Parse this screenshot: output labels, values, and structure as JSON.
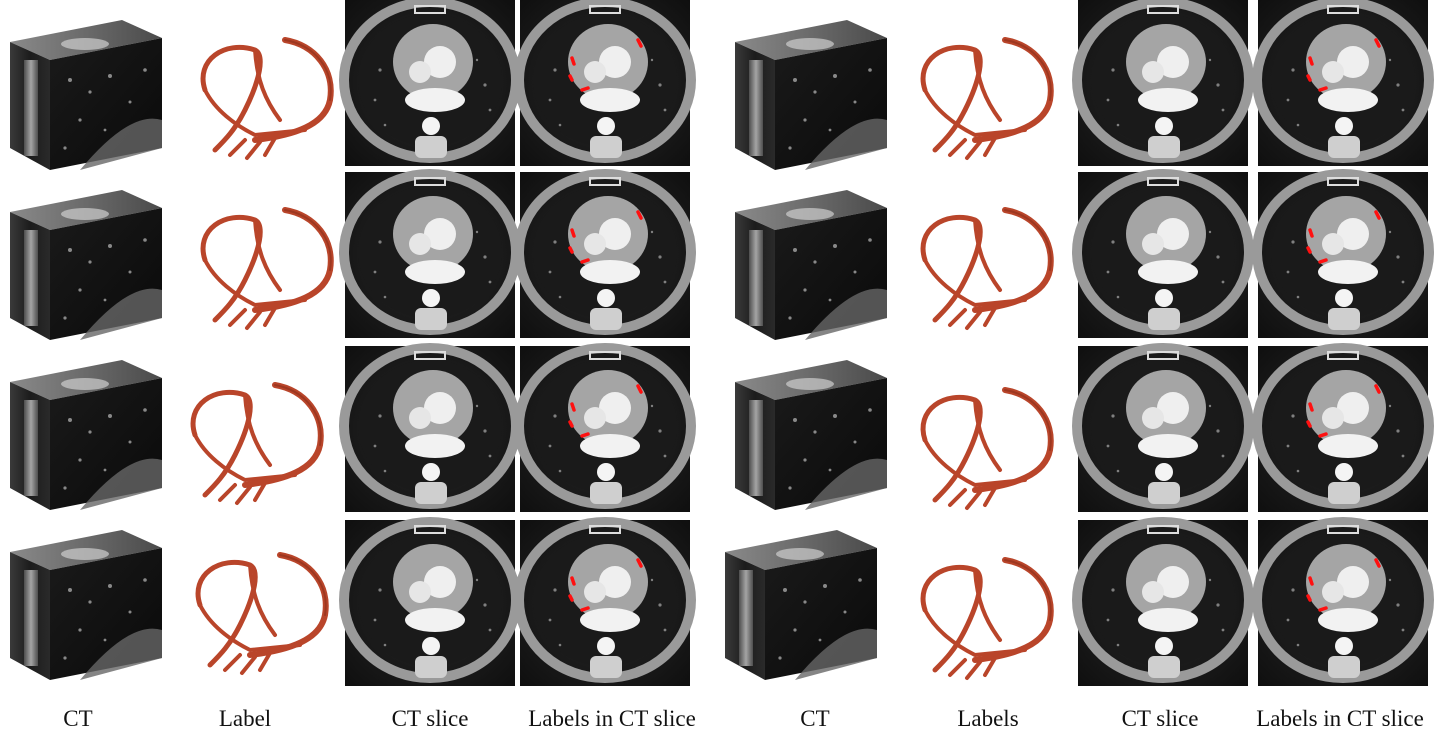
{
  "figure": {
    "captions_left": [
      "CT",
      "Label",
      "CT slice",
      "Labels in CT slice"
    ],
    "captions_right": [
      "CT",
      "Labels",
      "CT slice",
      "Labels in CT slice"
    ],
    "rows": 4,
    "colors": {
      "vessel": "#b9452a",
      "vessel_dark": "#8a2f1b",
      "annotation": "#ff1010",
      "ct_dark": "#151515",
      "ct_mid": "#7d7d7d",
      "ct_bright": "#e8e8e8"
    }
  }
}
